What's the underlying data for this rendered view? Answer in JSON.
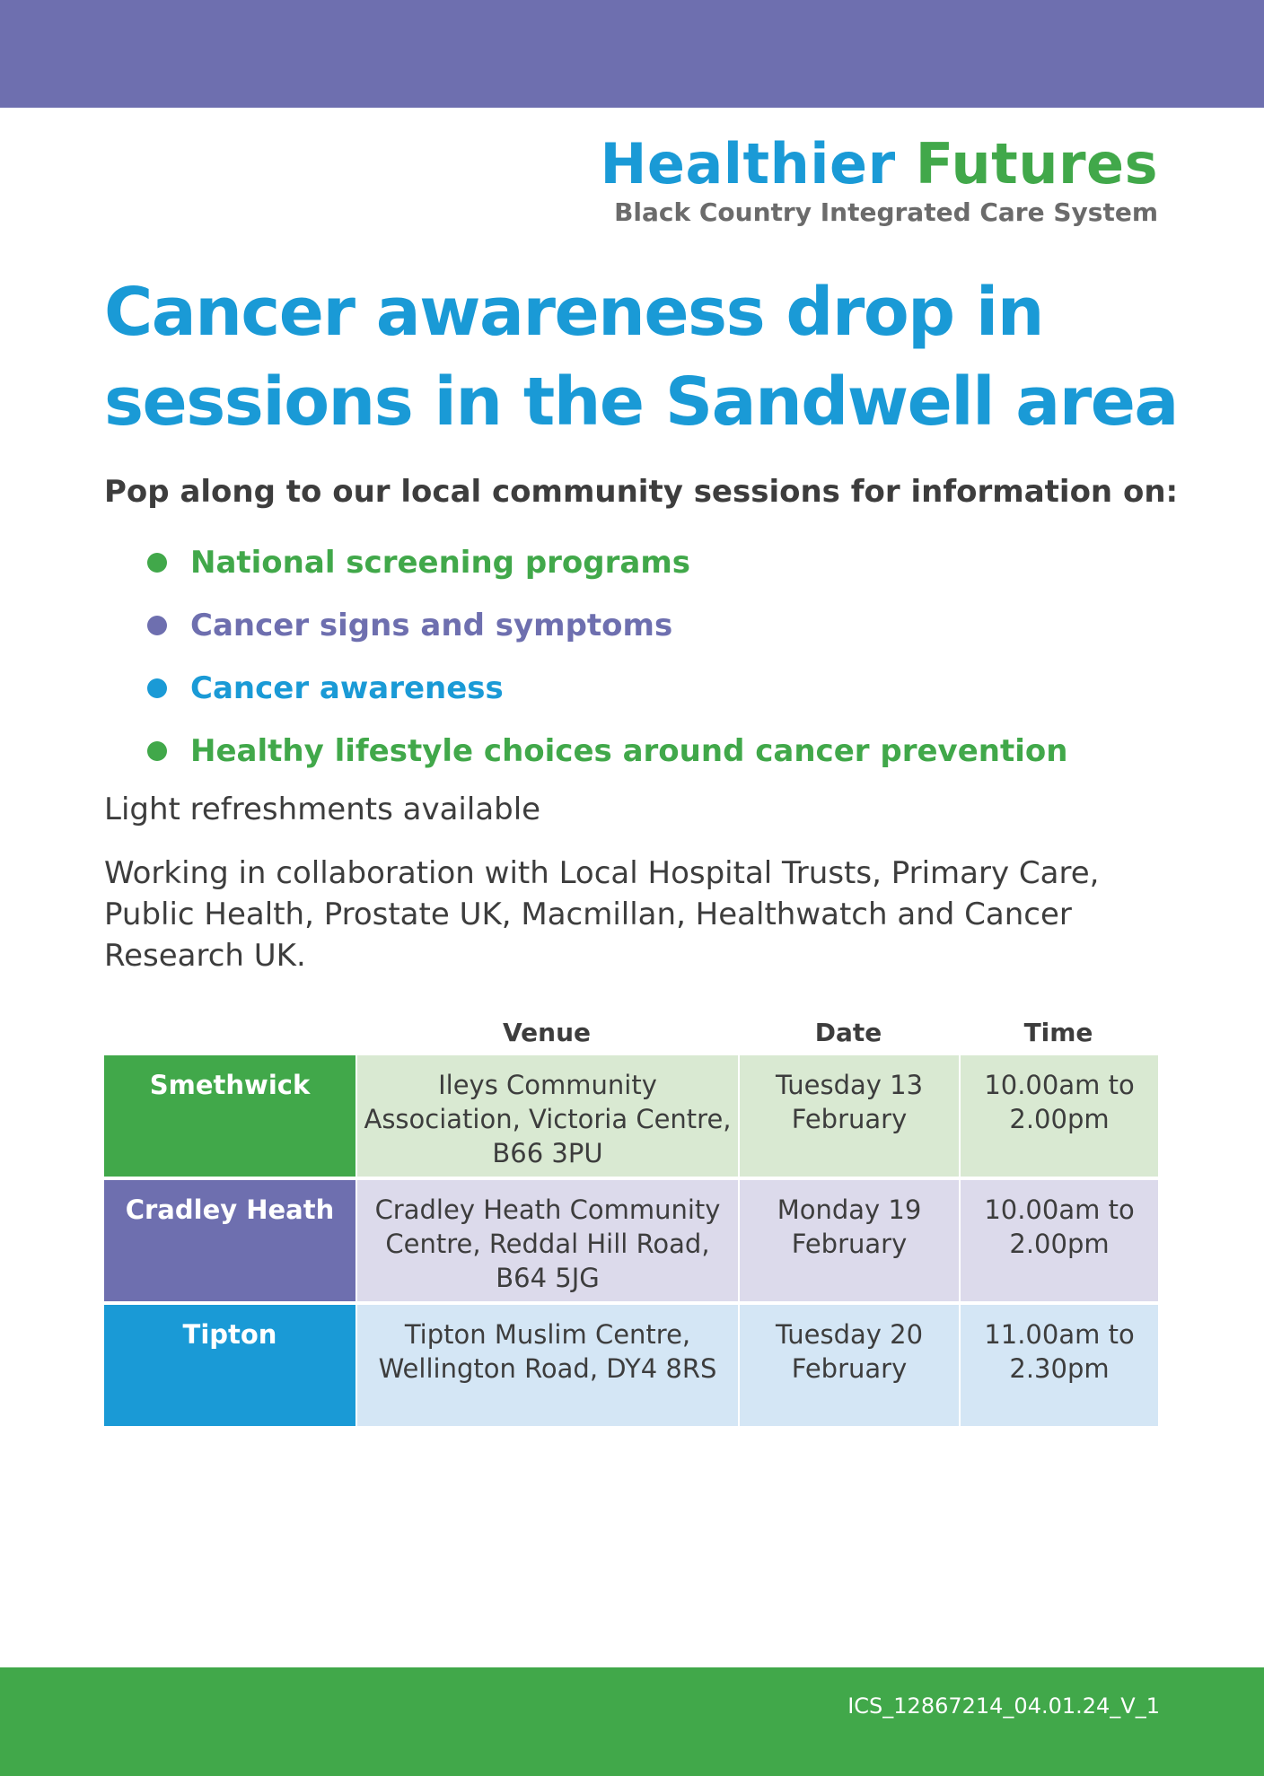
{
  "header": {
    "logo_word1": "Healthier",
    "logo_word2": "Futures",
    "logo_subtitle": "Black Country Integrated Care System"
  },
  "title_line1": "Cancer awareness drop in",
  "title_line2": "sessions in the Sandwell area",
  "intro": "Pop along to our local community sessions for information on:",
  "bullets": [
    {
      "text": "National screening programs",
      "color": "#41a84a"
    },
    {
      "text": "Cancer signs and symptoms",
      "color": "#6e6faf"
    },
    {
      "text": "Cancer awareness",
      "color": "#1a9ad6"
    },
    {
      "text": "Healthy lifestyle choices around cancer prevention",
      "color": "#41a84a"
    }
  ],
  "refreshments": "Light refreshments available",
  "collaboration": "Working in collaboration with Local Hospital Trusts, Primary Care, Public Health, Prostate UK, Macmillan, Healthwatch and Cancer Research UK.",
  "table": {
    "headers": [
      "",
      "Venue",
      "Date",
      "Time"
    ],
    "rows": [
      {
        "location": "Smethwick",
        "venue": "Ileys Community Association, Victoria Centre, B66 3PU",
        "date": "Tuesday 13 February",
        "time": "10.00am to 2.00pm",
        "accent": "#41a84a",
        "tint": "#d9e9d2"
      },
      {
        "location": "Cradley Heath",
        "venue": "Cradley Heath Community Centre, Reddal Hill Road, B64 5JG",
        "date": "Monday 19 February",
        "time": "10.00am to 2.00pm",
        "accent": "#6e6faf",
        "tint": "#dcdaeb"
      },
      {
        "location": "Tipton",
        "venue": "Tipton Muslim Centre, Wellington Road, DY4 8RS",
        "date": "Tuesday 20 February",
        "time": "11.00am to 2.30pm",
        "accent": "#1a9ad6",
        "tint": "#d4e6f5"
      }
    ]
  },
  "footer": {
    "code": "ICS_12867214_04.01.24_V_1"
  }
}
